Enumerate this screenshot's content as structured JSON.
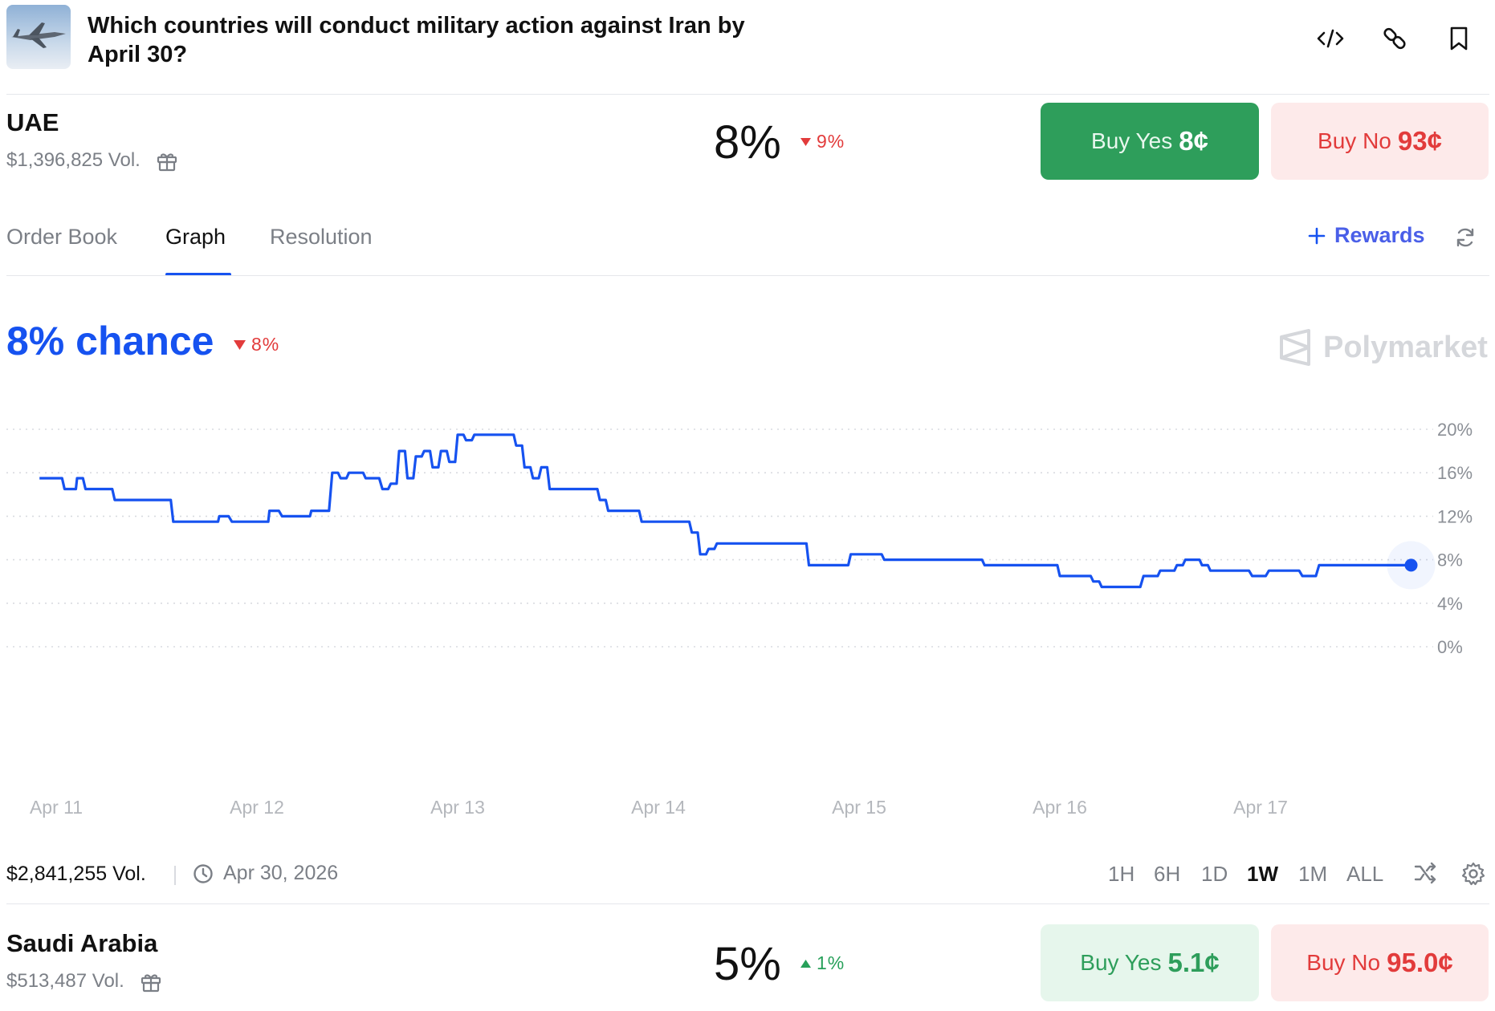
{
  "header": {
    "title": "Which countries will conduct military action against Iran by April 30?"
  },
  "market1": {
    "name": "UAE",
    "volume": "$1,396,825 Vol.",
    "percent": "8%",
    "change": "9%",
    "buy_yes_label": "Buy Yes",
    "buy_yes_price": "8¢",
    "buy_no_label": "Buy No",
    "buy_no_price": "93¢"
  },
  "tabs": [
    "Order Book",
    "Graph",
    "Resolution"
  ],
  "rewards_label": "Rewards",
  "chart_header": {
    "chance": "8% chance",
    "change": "8%",
    "watermark": "Polymarket"
  },
  "chart_data": {
    "type": "line",
    "series": [
      {
        "color": "#1652f0",
        "x": [
          "Apr 10 22:00",
          "Apr 11 00:00",
          "Apr 11 01:00",
          "Apr 11 02:00",
          "Apr 11 02:30",
          "Apr 11 03:30",
          "Apr 11 06:00",
          "Apr 11 07:00",
          "Apr 11 13:00",
          "Apr 11 14:00",
          "Apr 11 19:00",
          "Apr 11 19:30",
          "Apr 11 21:00",
          "Apr 12 01:00",
          "Apr 12 01:30",
          "Apr 12 03:00",
          "Apr 12 06:00",
          "Apr 12 06:30",
          "Apr 12 09:00",
          "Apr 12 10:00",
          "Apr 12 11:00",
          "Apr 12 12:00",
          "Apr 12 13:00",
          "Apr 12 15:00",
          "Apr 12 16:00",
          "Apr 12 17:00",
          "Apr 12 18:00",
          "Apr 12 19:00",
          "Apr 12 20:00",
          "Apr 12 21:00",
          "Apr 12 22:00",
          "Apr 12 23:00",
          "Apr 13 00:00",
          "Apr 13 01:00",
          "Apr 13 02:00",
          "Apr 13 03:00",
          "Apr 13 04:00",
          "Apr 13 05:00",
          "Apr 13 06:00",
          "Apr 13 07:00",
          "Apr 13 08:00",
          "Apr 13 09:00",
          "Apr 13 10:00",
          "Apr 13 11:00",
          "Apr 13 12:00",
          "Apr 13 16:00",
          "Apr 13 17:00",
          "Apr 13 18:00",
          "Apr 13 19:00",
          "Apr 13 20:00",
          "Apr 13 21:00",
          "Apr 13 22:00",
          "Apr 14 03:00",
          "Apr 14 04:00",
          "Apr 14 05:00",
          "Apr 14 06:00",
          "Apr 14 07:00",
          "Apr 14 17:00",
          "Apr 14 18:00",
          "Apr 14 20:00",
          "Apr 14 21:00",
          "Apr 14 22:00",
          "Apr 14 23:00",
          "Apr 15 00:00",
          "Apr 15 01:00",
          "Apr 15 02:00",
          "Apr 15 03:00",
          "Apr 15 04:00",
          "Apr 15 14:00",
          "Apr 15 15:00",
          "Apr 15 16:00",
          "Apr 15 17:00",
          "Apr 15 23:00",
          "Apr 16 00:00",
          "Apr 16 03:00",
          "Apr 16 04:00",
          "Apr 16 05:00",
          "Apr 16 10:00",
          "Apr 16 11:00",
          "Apr 16 12:00",
          "Apr 16 13:00",
          "Apr 16 14:00",
          "Apr 16 15:00",
          "Apr 16 16:00",
          "Apr 16 17:00",
          "Apr 16 18:00",
          "Apr 16 19:00",
          "Apr 16 21:00",
          "Apr 16 23:00",
          "Apr 17 01:00",
          "Apr 17 02:00",
          "Apr 17 03:00",
          "Apr 17 05:00",
          "Apr 17 07:00",
          "Apr 17 08:00",
          "Apr 17 09:00",
          "Apr 17 10:00",
          "Apr 17 11:00",
          "Apr 17 12:00",
          "Apr 17 13:00",
          "Apr 17 15:00",
          "Apr 17 16:00",
          "Apr 17 17:00",
          "Apr 17 18:00"
        ],
        "values": [
          15.5,
          15.5,
          14.5,
          14.5,
          15.5,
          14.5,
          14.5,
          13.5,
          13.5,
          11.5,
          11.5,
          12,
          11.5,
          11.5,
          12.5,
          12,
          12,
          12.5,
          16,
          15.5,
          16,
          16,
          15.5,
          14.5,
          15,
          18,
          15.5,
          17.5,
          18,
          16.5,
          18,
          17,
          19.5,
          19,
          19.5,
          19.5,
          19.5,
          19.5,
          19.5,
          18.5,
          16.5,
          15.5,
          16.5,
          14.5,
          14.5,
          14.5,
          13.5,
          12.5,
          12.5,
          12.5,
          12.5,
          11.5,
          11.5,
          10.5,
          8.5,
          9,
          9.5,
          9.5,
          7.5,
          7.5,
          7.5,
          7.5,
          8.5,
          8.5,
          8.5,
          8.5,
          8,
          8,
          8,
          7.5,
          7.5,
          7.5,
          7.5,
          6.5,
          6.5,
          6,
          5.5,
          6.5,
          6.5,
          7,
          7,
          7.5,
          8,
          8,
          7.5,
          7,
          7,
          7,
          6.5,
          7,
          7,
          7,
          6.5,
          7.5,
          7.5,
          7.5,
          7.5,
          7.5,
          7.5,
          7.5,
          7.5,
          7.5,
          7.5,
          7.5
        ]
      }
    ],
    "x_ticks": [
      "Apr 11",
      "Apr 12",
      "Apr 13",
      "Apr 14",
      "Apr 15",
      "Apr 16",
      "Apr 17"
    ],
    "y_ticks": [
      "20%",
      "16%",
      "12%",
      "8%",
      "4%",
      "0%"
    ],
    "ylim": [
      0,
      20
    ],
    "grid": true,
    "y_axis_position": "right"
  },
  "footer": {
    "volume": "$2,841,255 Vol.",
    "end_date": "Apr 30, 2026",
    "ranges": [
      "1H",
      "6H",
      "1D",
      "1W",
      "1M",
      "ALL"
    ],
    "active_range": "1W"
  },
  "market2": {
    "name": "Saudi Arabia",
    "volume": "$513,487 Vol.",
    "percent": "5%",
    "change": "1%",
    "buy_yes_label": "Buy Yes",
    "buy_yes_price": "5.1¢",
    "buy_no_label": "Buy No",
    "buy_no_price": "95.0¢"
  },
  "colors": {
    "accent": "#1652f0",
    "yes_green": "#2e9e5b",
    "yes_green_light": "#e6f6ec",
    "no_red": "#e23b3b",
    "no_red_light": "#fdeaea"
  }
}
